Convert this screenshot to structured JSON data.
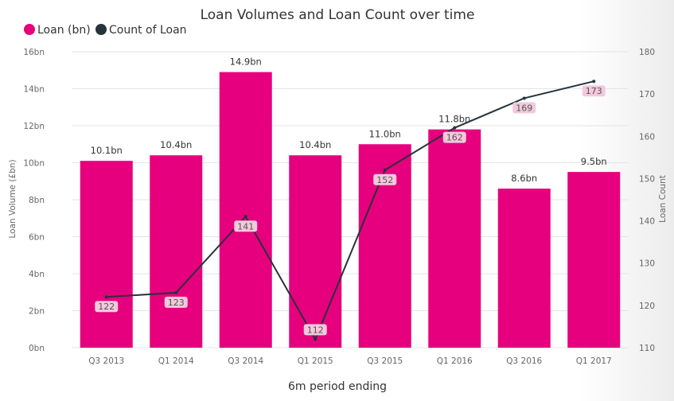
{
  "chart_data": {
    "type": "bar",
    "title": "Loan Volumes and Loan Count over time",
    "xlabel": "6m period ending",
    "ylabel": "Loan Volume (£bn)",
    "y2label": "Loan Count",
    "categories": [
      "Q3 2013",
      "Q1 2014",
      "Q3 2014",
      "Q1 2015",
      "Q3 2015",
      "Q1 2016",
      "Q3 2016",
      "Q1 2017"
    ],
    "ylim": [
      0,
      16
    ],
    "y_ticks": [
      "0bn",
      "2bn",
      "4bn",
      "6bn",
      "8bn",
      "10bn",
      "12bn",
      "14bn",
      "16bn"
    ],
    "y2lim": [
      110,
      180
    ],
    "y2_ticks": [
      "110",
      "120",
      "130",
      "140",
      "150",
      "160",
      "170",
      "180"
    ],
    "series": [
      {
        "name": "Loan (bn)",
        "type": "bar",
        "color": "#e6007e",
        "values": [
          10.1,
          10.4,
          14.9,
          10.4,
          11.0,
          11.8,
          8.6,
          9.5
        ],
        "labels": [
          "10.1bn",
          "10.4bn",
          "14.9bn",
          "10.4bn",
          "11.0bn",
          "11.8bn",
          "8.6bn",
          "9.5bn"
        ]
      },
      {
        "name": "Count of Loan",
        "type": "line",
        "axis": "right",
        "color": "#26343b",
        "values": [
          122,
          123,
          141,
          112,
          152,
          162,
          169,
          173
        ],
        "labels": [
          "122",
          "123",
          "141",
          "112",
          "152",
          "162",
          "169",
          "173"
        ]
      }
    ],
    "legend": "top-left",
    "grid": true
  }
}
